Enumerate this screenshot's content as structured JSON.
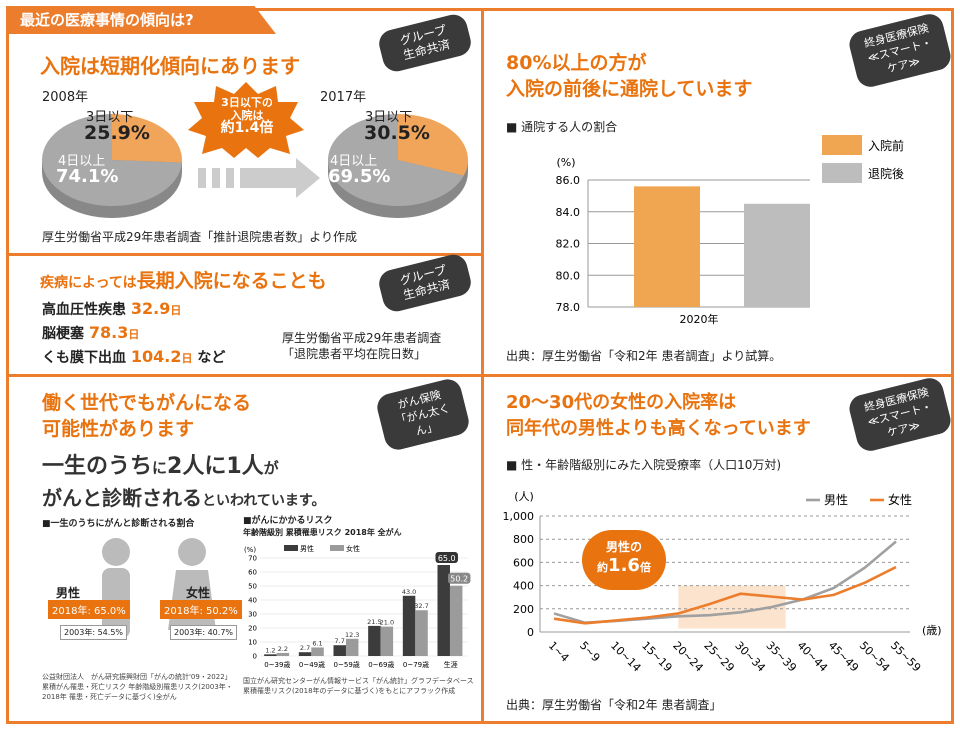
{
  "top_tab": "最近の医療事情の傾向は?",
  "p1": {
    "title": "入院は短期化傾向にあります",
    "badge": [
      "グループ",
      "生命共済"
    ],
    "pie_left": {
      "year": "2008年",
      "short_label": "3日以下",
      "short_value": "25.9%",
      "long_label": "4日以上",
      "long_value": "74.1%"
    },
    "pie_right": {
      "year": "2017年",
      "short_label": "3日以下",
      "short_value": "30.5%",
      "long_label": "4日以上",
      "long_value": "69.5%"
    },
    "burst": [
      "3日以下の",
      "入院は",
      "約1.4倍"
    ],
    "source": "厚生労働省平成29年患者調査「推計退院患者数」より作成"
  },
  "p2": {
    "title_pre": "疾病によっては",
    "title_main": "長期入院になることも",
    "badge": [
      "グループ",
      "生命共済"
    ],
    "items": [
      {
        "name": "高血圧性疾患",
        "value": "32.9",
        "unit": "日"
      },
      {
        "name": "脳梗塞",
        "value": "78.3",
        "unit": "日"
      },
      {
        "name": "くも膜下出血",
        "value": "104.2",
        "unit": "日"
      }
    ],
    "suffix": "など",
    "source": [
      "厚生労働省平成29年患者調査",
      "「退院患者平均在院日数」"
    ]
  },
  "p3": {
    "title": [
      "80%以上の方が",
      "入院の前後に通院しています"
    ],
    "badge": [
      "終身医療保険",
      "≪スマート・ケア≫"
    ],
    "subtitle": "■ 通院する人の割合",
    "source": "出典：厚生労働省「令和2年 患者調査」より試算。"
  },
  "p4": {
    "title": [
      "働く世代でもがんになる",
      "可能性があります"
    ],
    "badge": [
      "がん保険",
      "「がん太くん」"
    ],
    "headline_a": [
      "一生のうち",
      "に",
      "2人に1人",
      "が"
    ],
    "headline_b": [
      "がんと診断される",
      "といわれています。"
    ],
    "left_caption": "■一生のうちにがんと診断される割合",
    "male": {
      "label": "男性",
      "y2018": "2018年: 65.0%",
      "y2003": "2003年: 54.5%"
    },
    "female": {
      "label": "女性",
      "y2018": "2018年: 50.2%",
      "y2003": "2003年: 40.7%"
    },
    "left_source": [
      "公益財団法人　がん研究振興財団「がんの統計'09・2022」",
      "累積がん罹患・死亡リスク 年齢階級別罹患リスク(2003年・",
      "2018年 罹患・死亡データに基づく)全がん"
    ],
    "right_caption": [
      "■がんにかかるリスク",
      "年齢階級別 累積罹患リスク 2018年 全がん"
    ],
    "right_source": [
      "国立がん研究センターがん情報サービス「がん統計」グラフデータベース",
      "累積罹患リスク(2018年のデータに基づく)をもとにアフラック作成"
    ]
  },
  "p5": {
    "title": [
      "20～30代の女性の入院率は",
      "同年代の男性よりも高くなっています"
    ],
    "badge": [
      "終身医療保険",
      "≪スマート・ケア≫"
    ],
    "subtitle": "■ 性・年齢階級別にみた入院受療率（人口10万対)",
    "callout": [
      "男性の",
      "約",
      "1.6",
      "倍"
    ],
    "source": "出典：厚生労働省「令和2年 患者調査」"
  },
  "chart_data": [
    {
      "type": "pie",
      "title": "2008年",
      "categories": [
        "3日以下",
        "4日以上"
      ],
      "values": [
        25.9,
        74.1
      ],
      "colors": [
        "#f0a55a",
        "#a9a9a9"
      ]
    },
    {
      "type": "pie",
      "title": "2017年",
      "categories": [
        "3日以下",
        "4日以上"
      ],
      "values": [
        30.5,
        69.5
      ],
      "colors": [
        "#f0a55a",
        "#a9a9a9"
      ]
    },
    {
      "type": "bar",
      "categories": [
        "2020年"
      ],
      "series": [
        {
          "name": "入院前",
          "values": [
            85.6
          ],
          "color": "#f0a550"
        },
        {
          "name": "退院後",
          "values": [
            84.5
          ],
          "color": "#bdbdbd"
        }
      ],
      "ylabel": "(%)",
      "ylim": [
        78.0,
        86.0
      ],
      "yticks": [
        "78.0",
        "80.0",
        "82.0",
        "84.0",
        "86.0"
      ],
      "legend": "right",
      "grid": true
    },
    {
      "type": "bar",
      "title": "がんにかかるリスク 年齢階級別 累積罹患リスク 2018年 全がん",
      "categories": [
        "0~39歳",
        "0~49歳",
        "0~59歳",
        "0~69歳",
        "0~79歳",
        "生涯"
      ],
      "series": [
        {
          "name": "男性",
          "values": [
            1.2,
            2.7,
            7.7,
            21.5,
            43.0,
            65.0
          ],
          "color": "#3c3c3c"
        },
        {
          "name": "女性",
          "values": [
            2.2,
            6.1,
            12.3,
            21.0,
            32.7,
            50.2
          ],
          "color": "#9b9b9b"
        }
      ],
      "ylabel": "(%)",
      "ylim": [
        0,
        70
      ],
      "yticks": [
        "0",
        "10",
        "20",
        "30",
        "40",
        "50",
        "60",
        "70"
      ],
      "legend": "top"
    },
    {
      "type": "line",
      "categories": [
        "1~4",
        "5~9",
        "10~14",
        "15~19",
        "20~24",
        "25~29",
        "30~34",
        "35~39",
        "40~44",
        "45~49",
        "50~54",
        "55~59"
      ],
      "series": [
        {
          "name": "男性",
          "values": [
            160,
            80,
            95,
            115,
            135,
            145,
            170,
            215,
            280,
            380,
            555,
            780
          ],
          "color": "#a0a0a0"
        },
        {
          "name": "女性",
          "values": [
            115,
            75,
            100,
            125,
            160,
            240,
            330,
            305,
            280,
            320,
            425,
            560
          ],
          "color": "#ec7d2c"
        }
      ],
      "ylabel": "(人)",
      "xlabel": "(歳)",
      "ylim": [
        0,
        1000
      ],
      "yticks": [
        "0",
        "200",
        "400",
        "600",
        "800",
        "1,000"
      ],
      "legend": "top-right",
      "grid": true
    }
  ]
}
